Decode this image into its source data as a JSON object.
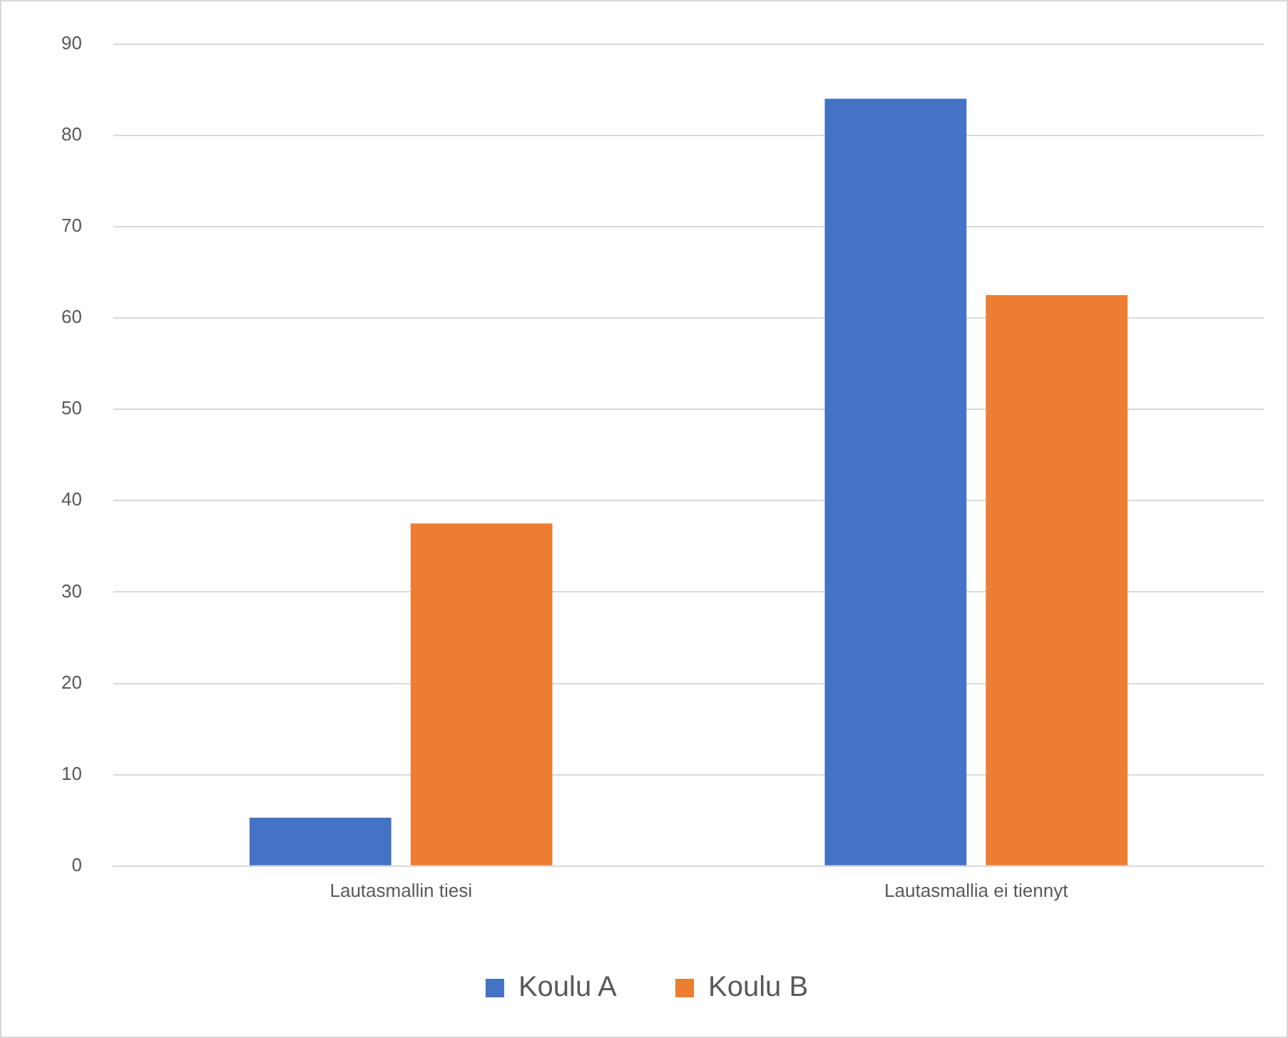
{
  "chart_data": {
    "type": "bar",
    "categories": [
      "Lautasmallin tiesi",
      "Lautasmallia ei tiennyt"
    ],
    "series": [
      {
        "name": "Koulu A",
        "color": "#4472c4",
        "values": [
          5.3,
          84
        ]
      },
      {
        "name": "Koulu B",
        "color": "#ed7d31",
        "values": [
          37.5,
          62.5
        ]
      }
    ],
    "ylim": [
      0,
      90
    ],
    "yticks": [
      0,
      10,
      20,
      30,
      40,
      50,
      60,
      70,
      80,
      90
    ],
    "grid": "y",
    "legend": "bottom"
  }
}
